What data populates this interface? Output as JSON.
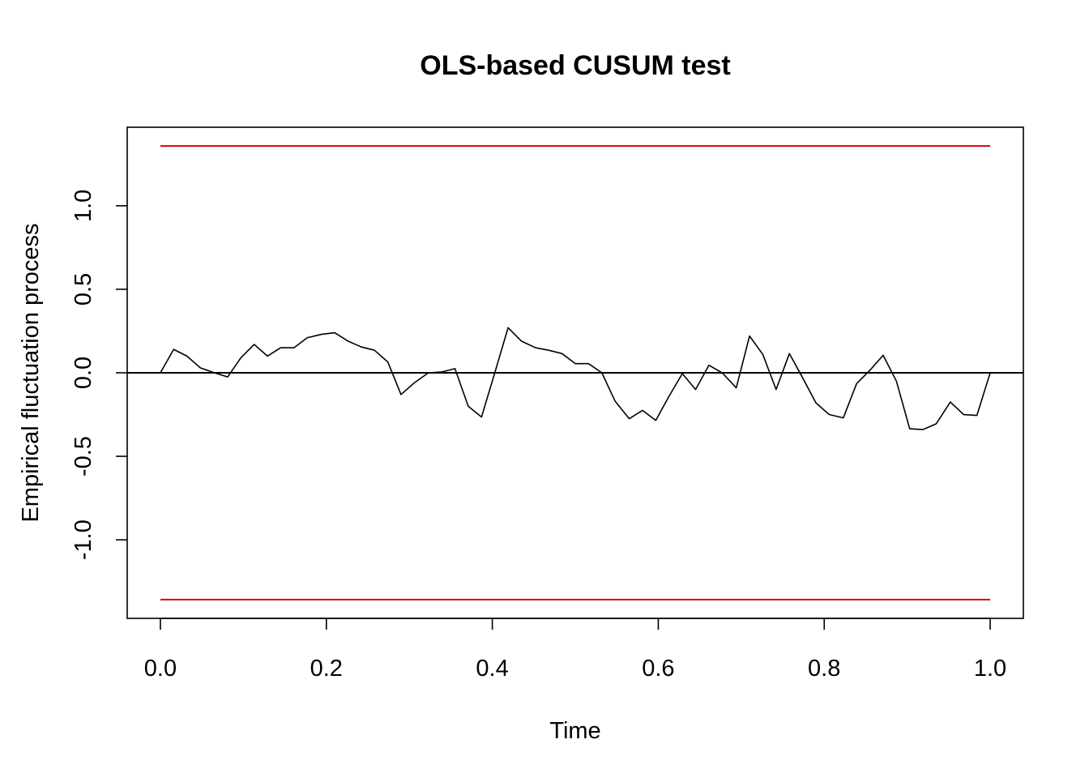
{
  "chart_data": {
    "type": "line",
    "title": "OLS-based CUSUM test",
    "xlabel": "Time",
    "ylabel": "Empirical fluctuation process",
    "xlim": [
      -0.04,
      1.04
    ],
    "ylim": [
      -1.47,
      1.47
    ],
    "x_ticks": [
      0.0,
      0.2,
      0.4,
      0.6,
      0.8,
      1.0
    ],
    "x_tick_labels": [
      "0.0",
      "0.2",
      "0.4",
      "0.6",
      "0.8",
      "1.0"
    ],
    "y_ticks": [
      -1.0,
      -0.5,
      0.0,
      0.5,
      1.0
    ],
    "y_tick_labels": [
      "-1.0",
      "-0.5",
      "0.0",
      "0.5",
      "1.0"
    ],
    "grid": false,
    "reference_line": {
      "y": 0.0,
      "color": "#000000"
    },
    "boundaries": {
      "upper": 1.358,
      "lower": -1.358,
      "color": "#dd0000"
    },
    "series": [
      {
        "color": "#000000",
        "x": [
          0.0,
          0.016,
          0.032,
          0.048,
          0.065,
          0.081,
          0.097,
          0.113,
          0.129,
          0.145,
          0.161,
          0.177,
          0.194,
          0.21,
          0.226,
          0.242,
          0.258,
          0.274,
          0.29,
          0.306,
          0.323,
          0.339,
          0.355,
          0.371,
          0.387,
          0.403,
          0.419,
          0.435,
          0.452,
          0.468,
          0.484,
          0.5,
          0.516,
          0.532,
          0.548,
          0.565,
          0.581,
          0.597,
          0.613,
          0.629,
          0.645,
          0.661,
          0.677,
          0.694,
          0.71,
          0.726,
          0.742,
          0.758,
          0.774,
          0.79,
          0.806,
          0.823,
          0.839,
          0.855,
          0.871,
          0.887,
          0.903,
          0.919,
          0.935,
          0.952,
          0.968,
          0.984,
          1.0
        ],
        "values": [
          0.0,
          0.14,
          0.1,
          0.03,
          0.0,
          -0.025,
          0.09,
          0.17,
          0.1,
          0.15,
          0.15,
          0.21,
          0.23,
          0.24,
          0.19,
          0.155,
          0.135,
          0.065,
          -0.13,
          -0.06,
          0.0,
          0.005,
          0.025,
          -0.2,
          -0.265,
          0.0,
          0.27,
          0.19,
          0.15,
          0.135,
          0.115,
          0.055,
          0.055,
          0.0,
          -0.17,
          -0.275,
          -0.225,
          -0.285,
          -0.14,
          -0.005,
          -0.1,
          0.045,
          0.0,
          -0.09,
          0.22,
          0.11,
          -0.1,
          0.115,
          -0.03,
          -0.18,
          -0.25,
          -0.27,
          -0.065,
          0.015,
          0.105,
          -0.05,
          -0.335,
          -0.34,
          -0.305,
          -0.175,
          -0.25,
          -0.255,
          0.0
        ]
      }
    ]
  }
}
